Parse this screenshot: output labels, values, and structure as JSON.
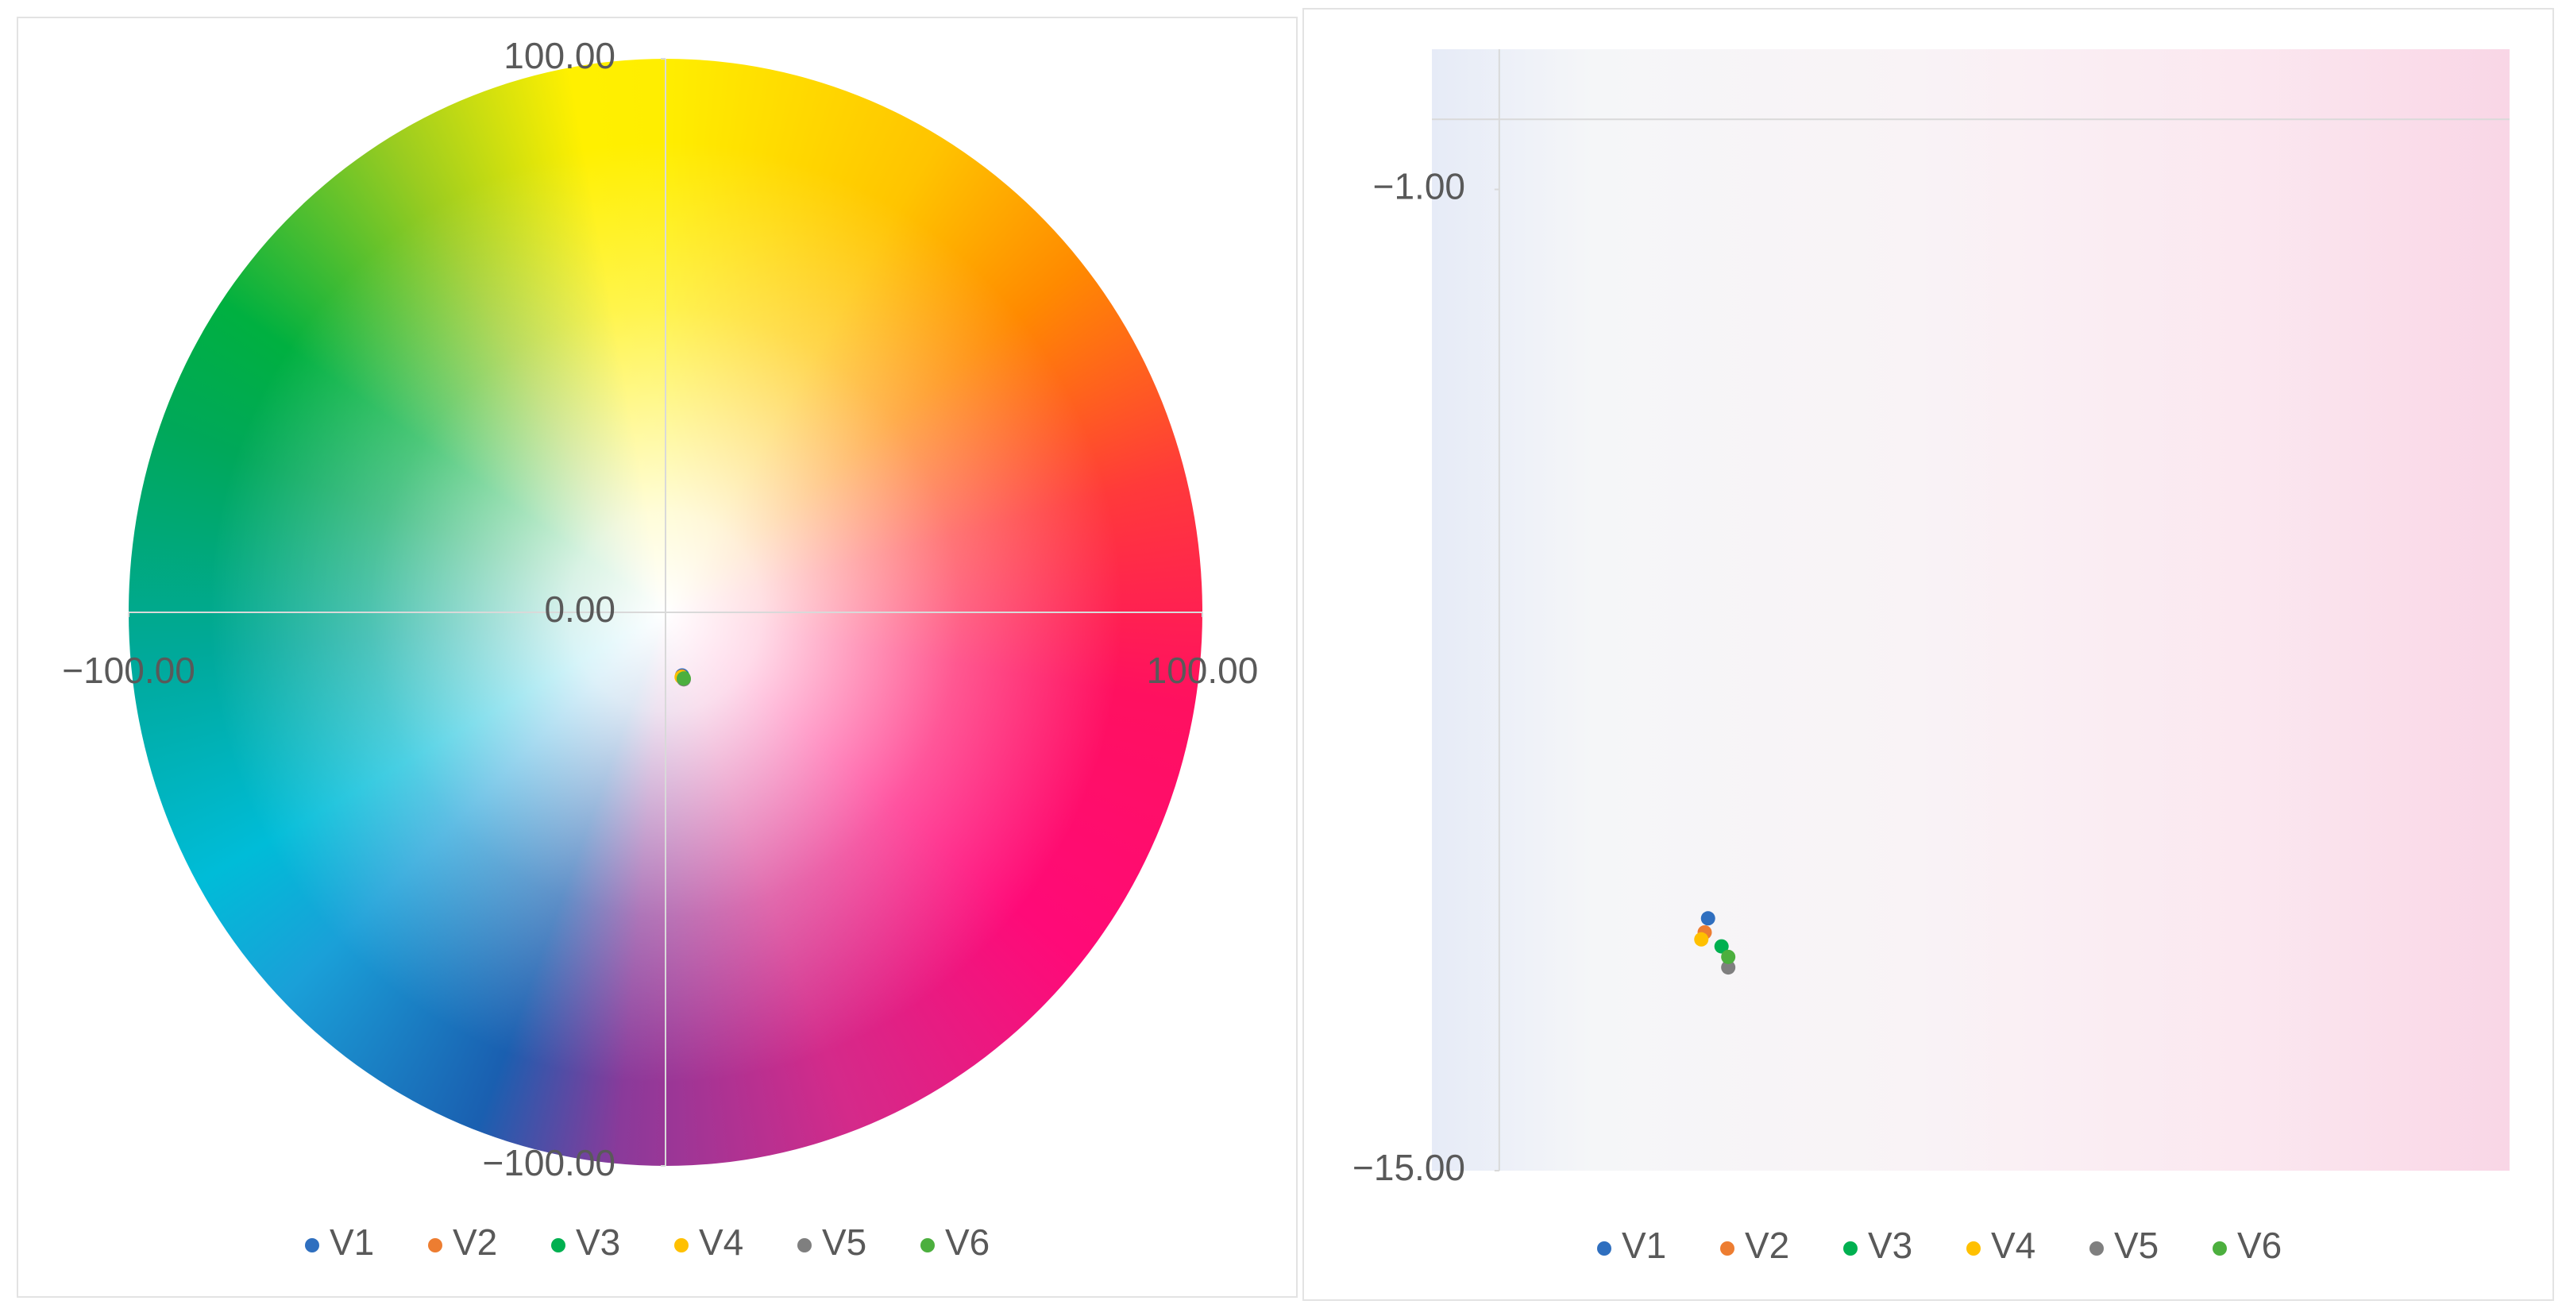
{
  "chart_data": [
    {
      "type": "scatter",
      "xlim": [
        -100,
        100
      ],
      "ylim": [
        -100,
        100
      ],
      "xticks": [
        {
          "value": -100,
          "label": "−100.00"
        },
        {
          "value": 100,
          "label": "100.00"
        }
      ],
      "yticks": [
        {
          "value": -100,
          "label": "−100.00"
        },
        {
          "value": 0,
          "label": "0.00"
        },
        {
          "value": 100,
          "label": "100.00"
        }
      ],
      "series": [
        {
          "name": "V1",
          "color": "#2f6fbf",
          "x": [
            3.1
          ],
          "values": [
            -11.4
          ]
        },
        {
          "name": "V2",
          "color": "#ed7d31",
          "x": [
            3.05
          ],
          "values": [
            -11.6
          ]
        },
        {
          "name": "V3",
          "color": "#00b050",
          "x": [
            3.3
          ],
          "values": [
            -11.8
          ]
        },
        {
          "name": "V4",
          "color": "#ffc000",
          "x": [
            3.0
          ],
          "values": [
            -11.7
          ]
        },
        {
          "name": "V5",
          "color": "#7f7f7f",
          "x": [
            3.4
          ],
          "values": [
            -12.1
          ]
        },
        {
          "name": "V6",
          "color": "#4caf3e",
          "x": [
            3.4
          ],
          "values": [
            -11.95
          ]
        }
      ]
    },
    {
      "type": "scatter",
      "xlim": [
        -1,
        15
      ],
      "ylim": [
        -15,
        1
      ],
      "yticks": [
        {
          "value": -15,
          "label": "−15.00"
        },
        {
          "value": -1,
          "label": "−1.00"
        }
      ],
      "series": [
        {
          "name": "V1",
          "color": "#2f6fbf",
          "x": [
            3.1
          ],
          "values": [
            -11.4
          ]
        },
        {
          "name": "V2",
          "color": "#ed7d31",
          "x": [
            3.05
          ],
          "values": [
            -11.6
          ]
        },
        {
          "name": "V3",
          "color": "#00b050",
          "x": [
            3.3
          ],
          "values": [
            -11.8
          ]
        },
        {
          "name": "V4",
          "color": "#ffc000",
          "x": [
            3.0
          ],
          "values": [
            -11.7
          ]
        },
        {
          "name": "V5",
          "color": "#7f7f7f",
          "x": [
            3.4
          ],
          "values": [
            -12.1
          ]
        },
        {
          "name": "V6",
          "color": "#4caf3e",
          "x": [
            3.4
          ],
          "values": [
            -11.95
          ]
        }
      ]
    }
  ]
}
